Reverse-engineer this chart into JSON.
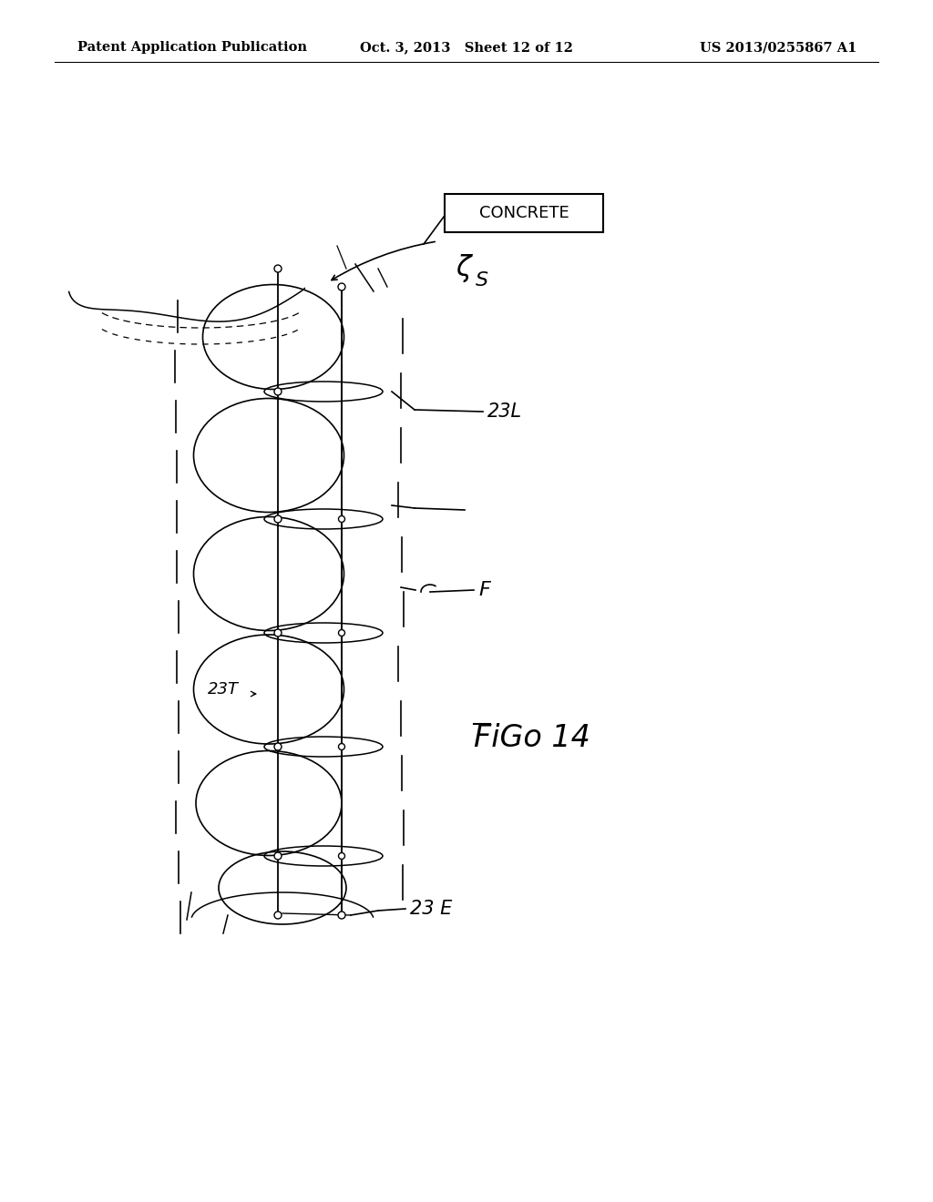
{
  "bg_color": "#ffffff",
  "header_left": "Patent Application Publication",
  "header_center": "Oct. 3, 2013   Sheet 12 of 12",
  "header_right": "US 2013/0255867 A1",
  "fig_label": "FiGo 14",
  "concrete_label": "CONCRETE",
  "label_23L": "23L",
  "label_23T": "23T",
  "label_F": "F",
  "label_S": "S",
  "label_23E": "23 E"
}
